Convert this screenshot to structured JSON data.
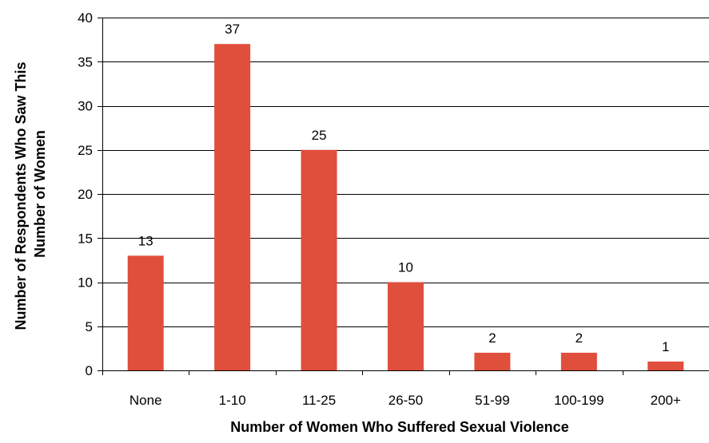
{
  "chart_data": {
    "type": "bar",
    "title": "",
    "xlabel": "Number of Women Who Suffered Sexual Violence",
    "ylabel_lines": [
      "Number of Respondents Who Saw This",
      "Number of Women"
    ],
    "categories": [
      "None",
      "1-10",
      "11-25",
      "26-50",
      "51-99",
      "100-199",
      "200+"
    ],
    "values": [
      13,
      37,
      25,
      10,
      2,
      2,
      1
    ],
    "data_labels": [
      "13",
      "37",
      "25",
      "10",
      "2",
      "2",
      "1"
    ],
    "yticks": [
      0,
      5,
      10,
      15,
      20,
      25,
      30,
      35,
      40
    ],
    "ylim": [
      0,
      40
    ],
    "grid": true,
    "legend": "none",
    "bar_color": "#e04e3c",
    "grid_color": "#000000",
    "axis_color": "#000000"
  }
}
